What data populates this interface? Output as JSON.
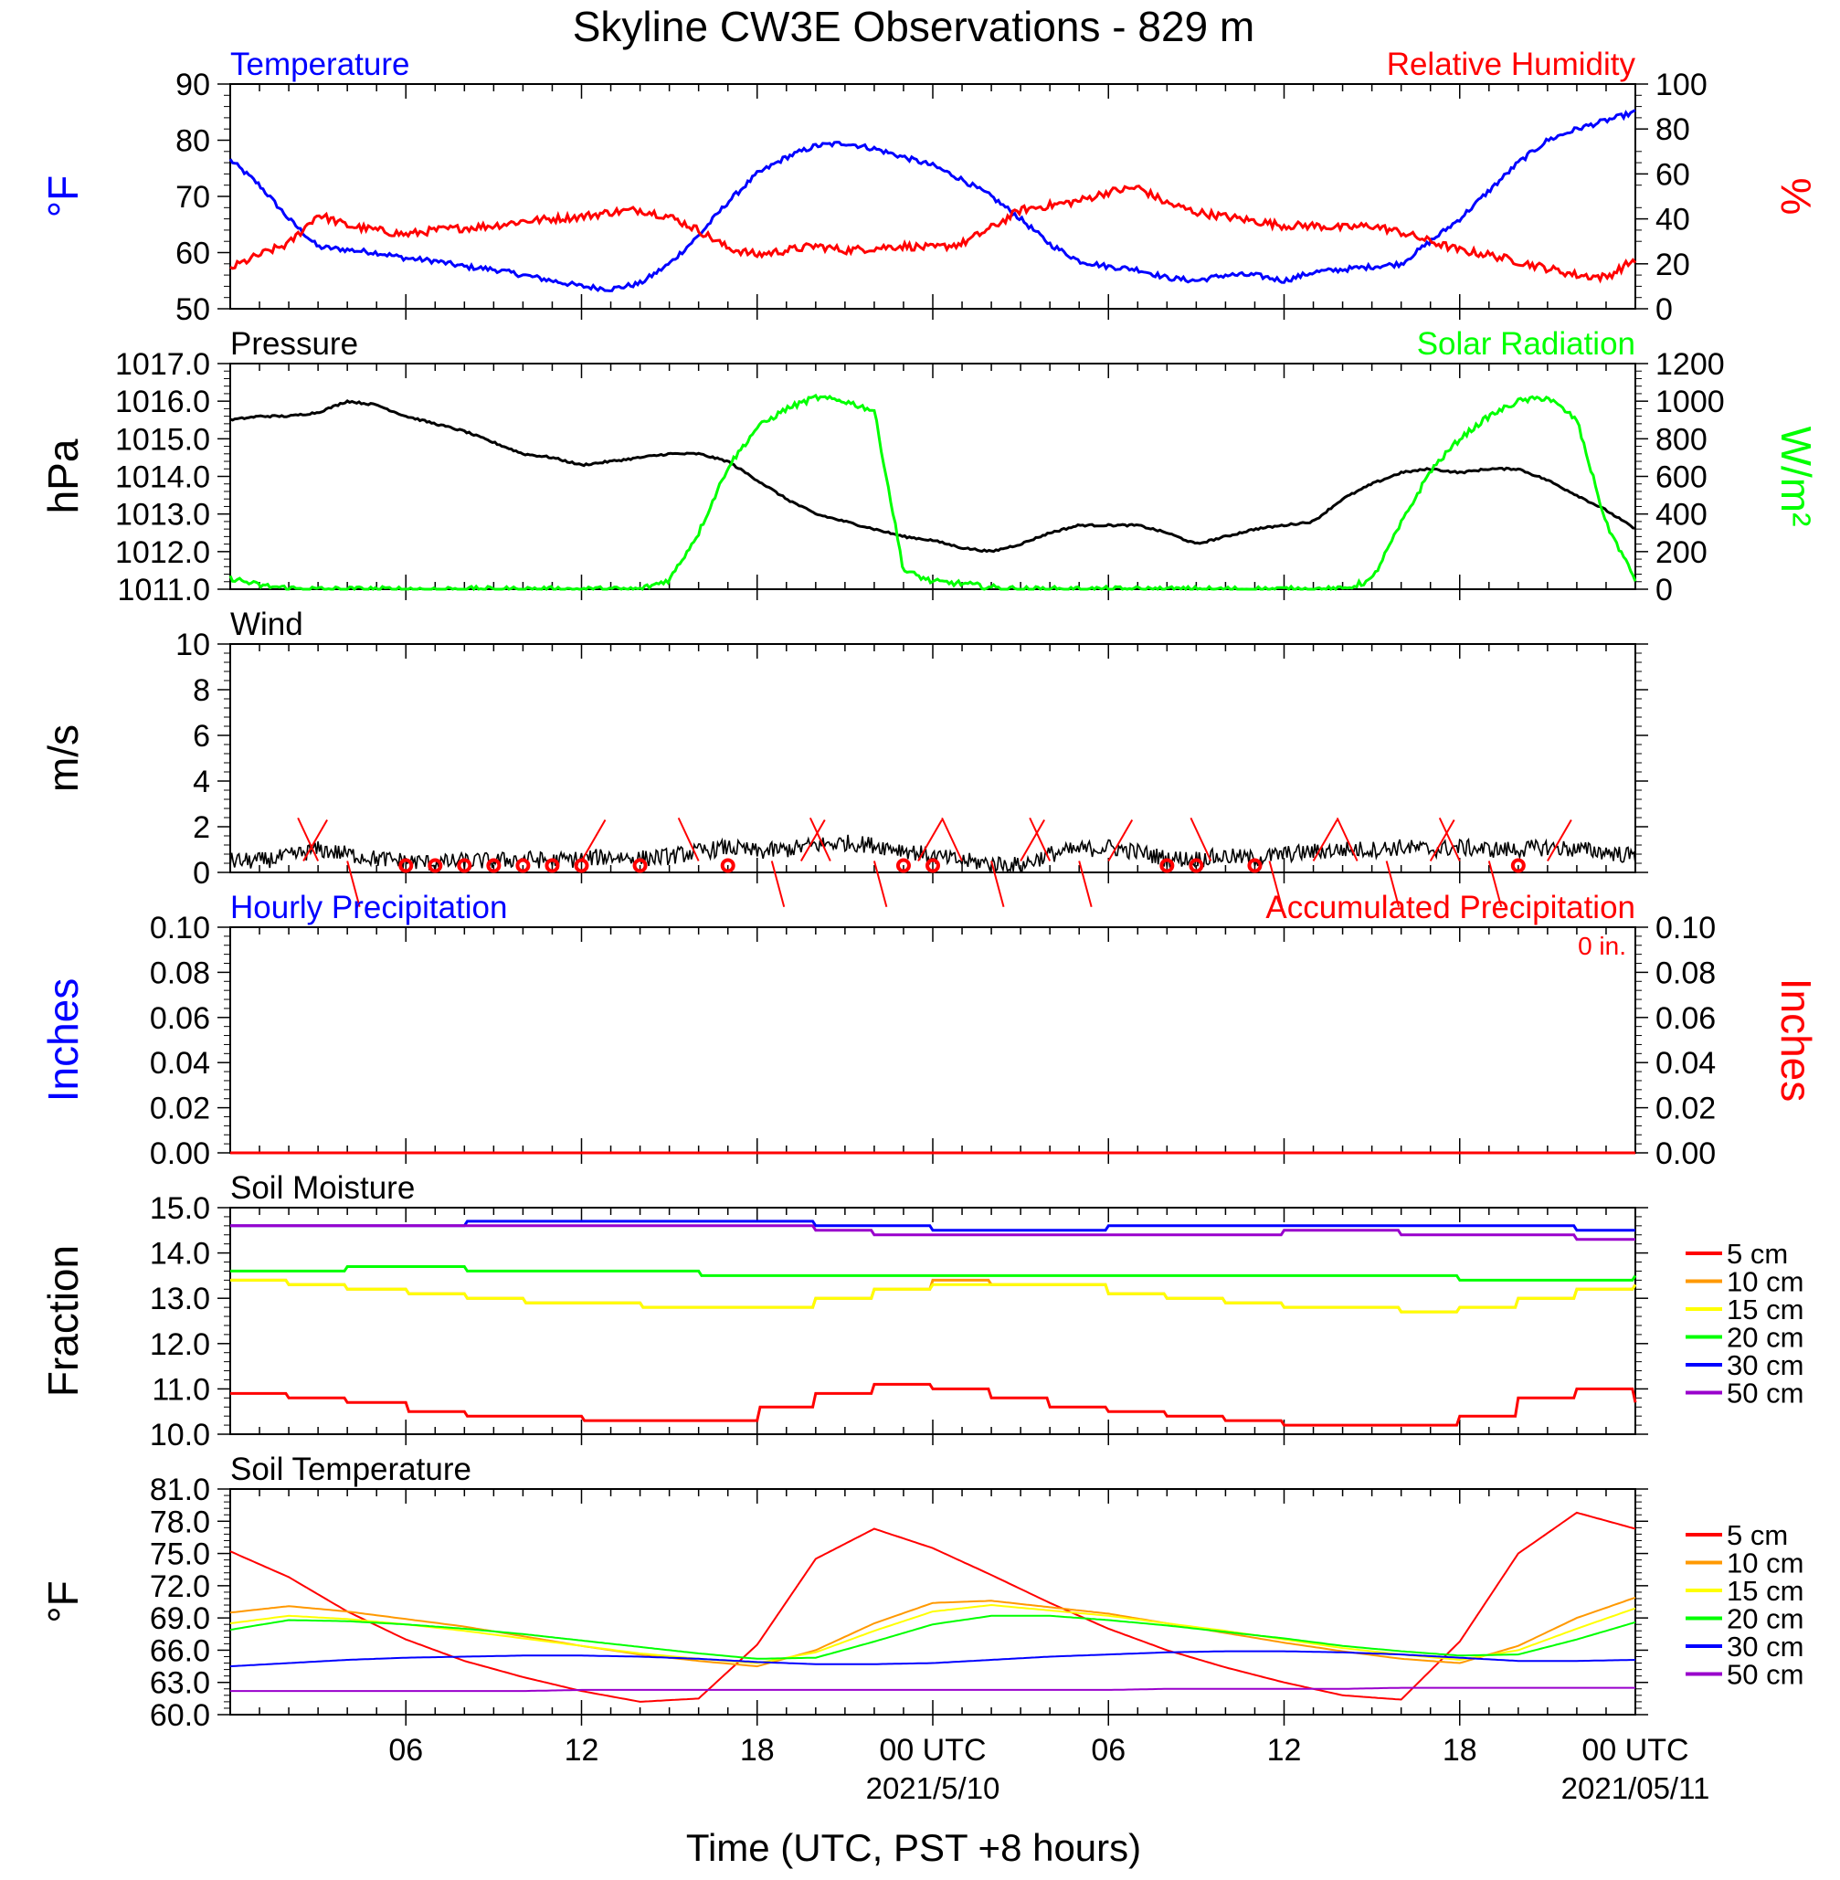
{
  "title": "Skyline CW3E Observations - 829 m",
  "xlabel": "Time (UTC, PST +8 hours)",
  "x_ticks": [
    {
      "label": "06",
      "hour": 6
    },
    {
      "label": "12",
      "hour": 12
    },
    {
      "label": "18",
      "hour": 18
    },
    {
      "label": "00 UTC",
      "hour": 24,
      "date": "2021/5/10"
    },
    {
      "label": "06",
      "hour": 30
    },
    {
      "label": "12",
      "hour": 36
    },
    {
      "label": "18",
      "hour": 42
    },
    {
      "label": "00 UTC",
      "hour": 48,
      "date": "2021/05/11"
    }
  ],
  "colors": {
    "blue": "#0000ff",
    "red": "#ff0000",
    "green": "#00ff00",
    "black": "#000000",
    "orange": "#ff9900",
    "yellow": "#ffff00",
    "purple": "#9900cc"
  },
  "chart_data": [
    {
      "type": "line",
      "panel": "temperature-rh",
      "title_left": "Temperature",
      "title_right": "Relative Humidity",
      "ylabel_left": "°F",
      "ylabel_right": "%",
      "ylim_left": [
        50,
        90
      ],
      "yticks_left": [
        "50",
        "60",
        "70",
        "80",
        "90"
      ],
      "ylim_right": [
        0,
        100
      ],
      "yticks_right": [
        "0",
        "20",
        "40",
        "60",
        "80",
        "100"
      ],
      "x": [
        0,
        1,
        2,
        3,
        4,
        5,
        6,
        7,
        8,
        9,
        10,
        11,
        12,
        13,
        14,
        15,
        16,
        17,
        18,
        19,
        20,
        21,
        22,
        23,
        24,
        25,
        26,
        27,
        28,
        29,
        30,
        31,
        32,
        33,
        34,
        35,
        36,
        37,
        38,
        39,
        40,
        41,
        42,
        43,
        44,
        45,
        46,
        47,
        48
      ],
      "series": [
        {
          "name": "Temperature",
          "axis": "left",
          "color": "#0000ff",
          "values": [
            76.5,
            72,
            66,
            61,
            60.5,
            60,
            59,
            58.5,
            57.5,
            57,
            56,
            55,
            54,
            53.5,
            54.5,
            58,
            63,
            69,
            74,
            77,
            79,
            79.5,
            78.5,
            77,
            75.5,
            73,
            70,
            66,
            61.5,
            58.5,
            57.5,
            57,
            55.5,
            55,
            56,
            56,
            55,
            56.5,
            57,
            57.5,
            58,
            62,
            66,
            71,
            76,
            80,
            82,
            83.5,
            85
          ]
        },
        {
          "name": "Relative Humidity",
          "axis": "right",
          "color": "#ff0000",
          "values": [
            18,
            24,
            29,
            42,
            37,
            35,
            33,
            35,
            36,
            37,
            39,
            40,
            41,
            43,
            44,
            41,
            35,
            27,
            24,
            26,
            28,
            26,
            27,
            28,
            27,
            29,
            36,
            44,
            46,
            48,
            52,
            54,
            47,
            43,
            41,
            39,
            37,
            37,
            36,
            37,
            34,
            30,
            26,
            24,
            21,
            18,
            15,
            14,
            22
          ]
        }
      ]
    },
    {
      "type": "line",
      "panel": "pressure-solar",
      "title_left": "Pressure",
      "title_right": "Solar Radiation",
      "ylabel_left": "hPa",
      "ylabel_right": "W/m²",
      "ylim_left": [
        1011,
        1017
      ],
      "yticks_left": [
        "1011.0",
        "1012.0",
        "1013.0",
        "1014.0",
        "1015.0",
        "1016.0",
        "1017.0"
      ],
      "ylim_right": [
        0,
        1200
      ],
      "yticks_right": [
        "0",
        "200",
        "400",
        "600",
        "800",
        "1000",
        "1200"
      ],
      "x": [
        0,
        1,
        2,
        3,
        4,
        5,
        6,
        7,
        8,
        9,
        10,
        11,
        12,
        13,
        14,
        15,
        16,
        17,
        18,
        19,
        20,
        21,
        22,
        23,
        24,
        25,
        26,
        27,
        28,
        29,
        30,
        31,
        32,
        33,
        34,
        35,
        36,
        37,
        38,
        39,
        40,
        41,
        42,
        43,
        44,
        45,
        46,
        47,
        48
      ],
      "series": [
        {
          "name": "Pressure",
          "axis": "left",
          "color": "#000000",
          "values": [
            1015.5,
            1015.6,
            1015.6,
            1015.7,
            1016.0,
            1015.9,
            1015.6,
            1015.4,
            1015.2,
            1014.9,
            1014.6,
            1014.5,
            1014.3,
            1014.4,
            1014.5,
            1014.6,
            1014.6,
            1014.4,
            1013.9,
            1013.4,
            1013.0,
            1012.8,
            1012.6,
            1012.4,
            1012.3,
            1012.1,
            1012.0,
            1012.2,
            1012.5,
            1012.7,
            1012.7,
            1012.7,
            1012.5,
            1012.2,
            1012.4,
            1012.6,
            1012.7,
            1012.8,
            1013.4,
            1013.8,
            1014.1,
            1014.2,
            1014.1,
            1014.2,
            1014.2,
            1013.9,
            1013.5,
            1013.1,
            1012.6
          ]
        },
        {
          "name": "Solar Radiation",
          "axis": "right",
          "color": "#00ff00",
          "values": [
            60,
            20,
            5,
            0,
            0,
            0,
            0,
            0,
            0,
            0,
            0,
            0,
            0,
            0,
            0,
            50,
            300,
            650,
            860,
            960,
            1020,
            1000,
            950,
            100,
            40,
            30,
            10,
            0,
            0,
            0,
            0,
            0,
            0,
            0,
            0,
            0,
            0,
            0,
            0,
            50,
            350,
            630,
            800,
            920,
            1000,
            1020,
            900,
            350,
            50
          ]
        }
      ]
    },
    {
      "type": "line",
      "panel": "wind",
      "title_left": "Wind",
      "ylabel_left": "m/s",
      "ylim_left": [
        0,
        10
      ],
      "yticks_left": [
        "0",
        "2",
        "4",
        "6",
        "8",
        "10"
      ],
      "x": [
        0,
        1,
        2,
        3,
        4,
        5,
        6,
        7,
        8,
        9,
        10,
        11,
        12,
        13,
        14,
        15,
        16,
        17,
        18,
        19,
        20,
        21,
        22,
        23,
        24,
        25,
        26,
        27,
        28,
        29,
        30,
        31,
        32,
        33,
        34,
        35,
        36,
        37,
        38,
        39,
        40,
        41,
        42,
        43,
        44,
        45,
        46,
        47,
        48
      ],
      "series": [
        {
          "name": "Wind",
          "axis": "left",
          "color": "#000000",
          "values": [
            0.5,
            0.5,
            0.7,
            1.0,
            0.8,
            0.6,
            0.5,
            0.4,
            0.5,
            0.5,
            0.6,
            0.5,
            0.6,
            0.7,
            0.6,
            0.7,
            0.9,
            1.1,
            0.9,
            1.0,
            1.2,
            1.3,
            1.2,
            1.0,
            0.7,
            0.5,
            0.4,
            0.3,
            0.8,
            1.0,
            1.1,
            0.9,
            0.6,
            0.6,
            0.7,
            0.6,
            0.8,
            0.9,
            1.0,
            1.0,
            1.1,
            1.0,
            1.1,
            1.0,
            1.0,
            1.1,
            1.0,
            0.9,
            0.7
          ]
        }
      ],
      "calm_circles_hours": [
        6,
        7,
        8,
        9,
        10,
        11,
        12,
        14,
        17,
        23,
        24,
        32,
        33,
        35,
        44
      ],
      "barb_hours": [
        2.5,
        3,
        4,
        12,
        16,
        18.5,
        19.5,
        20.5,
        22,
        23.5,
        25,
        26,
        27,
        28,
        29,
        30,
        33.5,
        35.5,
        37,
        38.5,
        39.5,
        41,
        42,
        43,
        45
      ]
    },
    {
      "type": "line",
      "panel": "precipitation",
      "title_left": "Hourly Precipitation",
      "title_right": "Accumulated Precipitation",
      "annotation": "0 in.",
      "ylabel_left": "Inches",
      "ylabel_right": "Inches",
      "ylim_left": [
        0,
        0.1
      ],
      "yticks_left": [
        "0.00",
        "0.02",
        "0.04",
        "0.06",
        "0.08",
        "0.10"
      ],
      "ylim_right": [
        0,
        0.1
      ],
      "yticks_right": [
        "0.00",
        "0.02",
        "0.04",
        "0.06",
        "0.08",
        "0.10"
      ],
      "x": [
        0,
        48
      ],
      "series": [
        {
          "name": "Hourly Precipitation",
          "axis": "left",
          "color": "#0000ff",
          "values": [
            0,
            0
          ]
        },
        {
          "name": "Accumulated Precipitation",
          "axis": "right",
          "color": "#ff0000",
          "values": [
            0,
            0
          ]
        }
      ]
    },
    {
      "type": "line",
      "panel": "soil-moisture",
      "title_left": "Soil Moisture",
      "ylabel_left": "Fraction",
      "ylim_left": [
        10,
        15
      ],
      "yticks_left": [
        "10.0",
        "11.0",
        "12.0",
        "13.0",
        "14.0",
        "15.0"
      ],
      "x": [
        0,
        2,
        4,
        6,
        8,
        10,
        12,
        14,
        16,
        18,
        20,
        22,
        24,
        26,
        28,
        30,
        32,
        34,
        36,
        38,
        40,
        42,
        44,
        46,
        48
      ],
      "series": [
        {
          "name": "5 cm",
          "color": "#ff0000",
          "values": [
            10.9,
            10.8,
            10.7,
            10.5,
            10.4,
            10.4,
            10.3,
            10.3,
            10.3,
            10.6,
            10.9,
            11.1,
            11.0,
            10.8,
            10.6,
            10.5,
            10.4,
            10.3,
            10.2,
            10.2,
            10.2,
            10.4,
            10.8,
            11.0,
            10.7
          ]
        },
        {
          "name": "10 cm",
          "color": "#ff9900",
          "values": [
            13.4,
            13.3,
            13.2,
            13.1,
            13.0,
            12.9,
            12.9,
            12.8,
            12.8,
            12.8,
            13.0,
            13.2,
            13.4,
            13.3,
            13.3,
            13.1,
            13.0,
            12.9,
            12.8,
            12.8,
            12.7,
            12.8,
            13.0,
            13.2,
            13.3
          ]
        },
        {
          "name": "15 cm",
          "color": "#ffff00",
          "values": [
            13.4,
            13.3,
            13.2,
            13.1,
            13.0,
            12.9,
            12.9,
            12.8,
            12.8,
            12.8,
            13.0,
            13.2,
            13.3,
            13.3,
            13.3,
            13.1,
            13.0,
            12.9,
            12.8,
            12.8,
            12.7,
            12.8,
            13.0,
            13.2,
            13.3
          ]
        },
        {
          "name": "20 cm",
          "color": "#00ff00",
          "values": [
            13.6,
            13.6,
            13.7,
            13.7,
            13.6,
            13.6,
            13.6,
            13.6,
            13.5,
            13.5,
            13.5,
            13.5,
            13.5,
            13.5,
            13.5,
            13.5,
            13.5,
            13.5,
            13.5,
            13.5,
            13.5,
            13.4,
            13.4,
            13.4,
            13.5
          ]
        },
        {
          "name": "30 cm",
          "color": "#0000ff",
          "values": [
            14.6,
            14.6,
            14.6,
            14.6,
            14.7,
            14.7,
            14.7,
            14.7,
            14.7,
            14.7,
            14.6,
            14.6,
            14.5,
            14.5,
            14.5,
            14.6,
            14.6,
            14.6,
            14.6,
            14.6,
            14.6,
            14.6,
            14.6,
            14.5,
            14.5
          ]
        },
        {
          "name": "50 cm",
          "color": "#9900cc",
          "values": [
            14.6,
            14.6,
            14.6,
            14.6,
            14.6,
            14.6,
            14.6,
            14.6,
            14.6,
            14.6,
            14.5,
            14.4,
            14.4,
            14.4,
            14.4,
            14.4,
            14.4,
            14.4,
            14.5,
            14.5,
            14.4,
            14.4,
            14.4,
            14.3,
            14.3
          ]
        }
      ]
    },
    {
      "type": "line",
      "panel": "soil-temperature",
      "title_left": "Soil Temperature",
      "ylabel_left": "°F",
      "ylim_left": [
        60,
        81
      ],
      "yticks_left": [
        "60.0",
        "63.0",
        "66.0",
        "69.0",
        "72.0",
        "75.0",
        "78.0",
        "81.0"
      ],
      "x": [
        0,
        2,
        4,
        6,
        8,
        10,
        12,
        14,
        16,
        18,
        20,
        22,
        24,
        26,
        28,
        30,
        32,
        34,
        36,
        38,
        40,
        42,
        44,
        46,
        48
      ],
      "series": [
        {
          "name": "5 cm",
          "color": "#ff0000",
          "values": [
            75.2,
            72.8,
            69.6,
            67.0,
            65.0,
            63.5,
            62.2,
            61.2,
            61.5,
            66.5,
            74.5,
            77.3,
            75.5,
            73.0,
            70.4,
            68.0,
            66.0,
            64.4,
            63.0,
            61.8,
            61.4,
            66.8,
            75.0,
            78.8,
            77.3
          ]
        },
        {
          "name": "10 cm",
          "color": "#ff9900",
          "values": [
            69.5,
            70.1,
            69.6,
            68.9,
            68.2,
            67.3,
            66.4,
            65.6,
            65.0,
            64.5,
            66.0,
            68.5,
            70.4,
            70.6,
            70.0,
            69.4,
            68.5,
            67.6,
            66.7,
            65.9,
            65.2,
            64.8,
            66.4,
            69.0,
            70.9
          ]
        },
        {
          "name": "15 cm",
          "color": "#ffff00",
          "values": [
            68.5,
            69.2,
            68.9,
            68.4,
            67.8,
            67.1,
            66.4,
            65.7,
            65.2,
            64.8,
            65.8,
            67.8,
            69.6,
            70.2,
            69.7,
            69.2,
            68.5,
            67.8,
            67.0,
            66.2,
            65.6,
            65.1,
            66.0,
            68.0,
            69.9
          ]
        },
        {
          "name": "20 cm",
          "color": "#00ff00",
          "values": [
            67.9,
            68.8,
            68.7,
            68.4,
            68.0,
            67.5,
            66.9,
            66.3,
            65.7,
            65.2,
            65.3,
            66.8,
            68.4,
            69.2,
            69.2,
            68.8,
            68.3,
            67.7,
            67.1,
            66.4,
            65.9,
            65.5,
            65.6,
            67.0,
            68.6
          ]
        },
        {
          "name": "30 cm",
          "color": "#0000ff",
          "values": [
            64.5,
            64.8,
            65.1,
            65.3,
            65.4,
            65.5,
            65.5,
            65.4,
            65.2,
            64.9,
            64.7,
            64.7,
            64.8,
            65.1,
            65.4,
            65.6,
            65.8,
            65.9,
            65.9,
            65.8,
            65.6,
            65.3,
            65.0,
            65.0,
            65.1
          ]
        },
        {
          "name": "50 cm",
          "color": "#9900cc",
          "values": [
            62.2,
            62.2,
            62.2,
            62.2,
            62.2,
            62.2,
            62.3,
            62.3,
            62.3,
            62.3,
            62.3,
            62.3,
            62.3,
            62.3,
            62.3,
            62.3,
            62.4,
            62.4,
            62.4,
            62.4,
            62.5,
            62.5,
            62.5,
            62.5,
            62.5
          ]
        }
      ]
    }
  ],
  "soil_legend": [
    "5 cm",
    "10 cm",
    "15 cm",
    "20 cm",
    "30 cm",
    "50 cm"
  ]
}
